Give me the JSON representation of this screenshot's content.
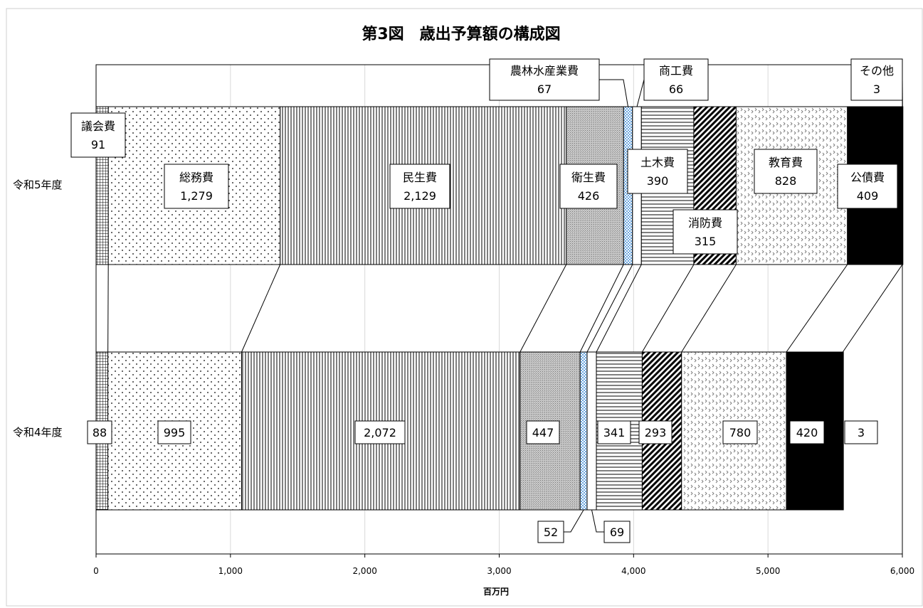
{
  "chart_data": {
    "type": "bar",
    "orientation": "horizontal",
    "stacked": true,
    "title": "第3図　歳出予算額の構成図",
    "xlabel": "百万円",
    "xlim": [
      0,
      6000
    ],
    "xticks": [
      "0",
      "1,000",
      "2,000",
      "3,000",
      "4,000",
      "5,000",
      "6,000"
    ],
    "xtick_values": [
      0,
      1000,
      2000,
      3000,
      4000,
      5000,
      6000
    ],
    "grid": true,
    "categories": [
      "令和5年度",
      "令和4年度"
    ],
    "series": [
      {
        "name": "議会費",
        "values": [
          91,
          88
        ],
        "labels": [
          "91",
          "88"
        ],
        "pattern": "grid"
      },
      {
        "name": "総務費",
        "values": [
          1279,
          995
        ],
        "labels": [
          "1,279",
          "995"
        ],
        "pattern": "dots"
      },
      {
        "name": "民生費",
        "values": [
          2129,
          2072
        ],
        "labels": [
          "2,129",
          "2,072"
        ],
        "pattern": "vlines"
      },
      {
        "name": "衛生費",
        "values": [
          426,
          447
        ],
        "labels": [
          "426",
          "447"
        ],
        "pattern": "gray"
      },
      {
        "name": "農林水産業費",
        "values": [
          67,
          52
        ],
        "labels": [
          "67",
          "52"
        ],
        "pattern": "bluecheck"
      },
      {
        "name": "商工費",
        "values": [
          66,
          69
        ],
        "labels": [
          "66",
          "69"
        ],
        "pattern": "white"
      },
      {
        "name": "土木費",
        "values": [
          390,
          341
        ],
        "labels": [
          "390",
          "341"
        ],
        "pattern": "hlines"
      },
      {
        "name": "消防費",
        "values": [
          315,
          293
        ],
        "labels": [
          "315",
          "293"
        ],
        "pattern": "diag"
      },
      {
        "name": "教育費",
        "values": [
          828,
          780
        ],
        "labels": [
          "828",
          "780"
        ],
        "pattern": "zigzag"
      },
      {
        "name": "公債費",
        "values": [
          409,
          420
        ],
        "labels": [
          "409",
          "420"
        ],
        "pattern": "black"
      },
      {
        "name": "その他",
        "values": [
          3,
          3
        ],
        "labels": [
          "3",
          "3"
        ],
        "pattern": "white"
      }
    ]
  }
}
